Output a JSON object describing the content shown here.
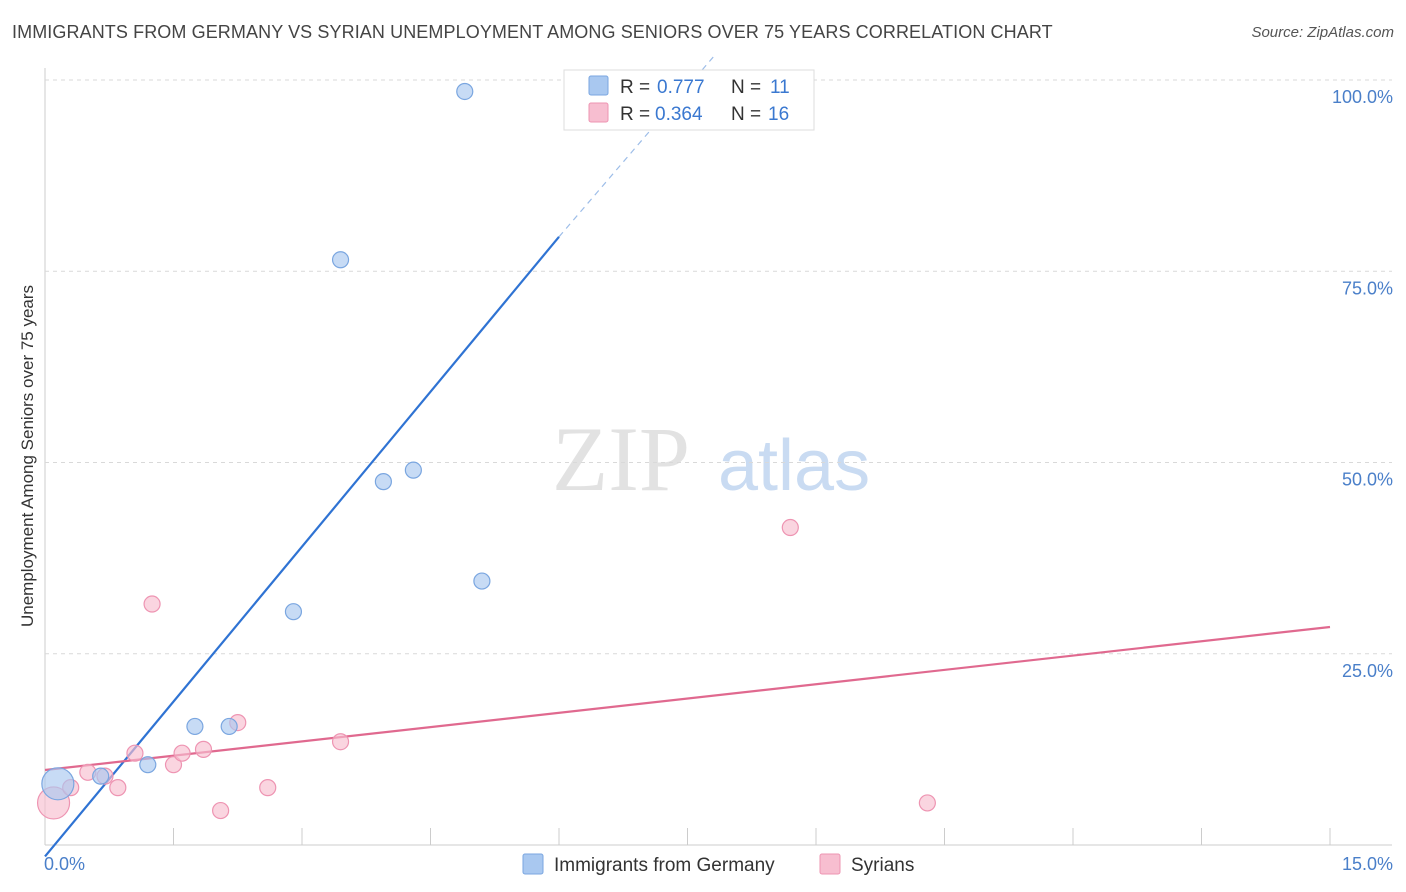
{
  "header": {
    "title": "IMMIGRANTS FROM GERMANY VS SYRIAN UNEMPLOYMENT AMONG SENIORS OVER 75 YEARS CORRELATION CHART",
    "source": "Source: ZipAtlas.com"
  },
  "watermark": {
    "zip": "ZIP",
    "atlas": "atlas"
  },
  "colors": {
    "germany_fill": "#a9c8f0",
    "germany_stroke": "#7aa6e0",
    "germany_line": "#2f73d3",
    "syrians_fill": "#f7bed0",
    "syrians_stroke": "#ee94b2",
    "syrians_line": "#e0698f",
    "tick_text": "#4a7fc9",
    "grid": "#d9d9d9"
  },
  "chart_data": {
    "type": "scatter",
    "title": "IMMIGRANTS FROM GERMANY VS SYRIAN UNEMPLOYMENT AMONG SENIORS OVER 75 YEARS CORRELATION CHART",
    "xlabel": "",
    "ylabel": "Unemployment Among Seniors over 75 years",
    "xlim": [
      0,
      15
    ],
    "ylim": [
      0,
      100
    ],
    "x_tick_labels": [
      "0.0%",
      "15.0%"
    ],
    "y_ticks": [
      25,
      50,
      75,
      100
    ],
    "y_tick_labels": [
      "25.0%",
      "50.0%",
      "75.0%",
      "100.0%"
    ],
    "legend_top": [
      {
        "label": "R = ",
        "r": "0.777",
        "n_label": "N = ",
        "n": "11"
      },
      {
        "label": "R = ",
        "r": "0.364",
        "n_label": "N = ",
        "n": "16"
      }
    ],
    "series": [
      {
        "name": "Immigrants from Germany",
        "points": [
          {
            "x": 0.15,
            "y": 8.0,
            "size": "large"
          },
          {
            "x": 0.65,
            "y": 9.0
          },
          {
            "x": 1.2,
            "y": 10.5
          },
          {
            "x": 1.75,
            "y": 15.5
          },
          {
            "x": 2.15,
            "y": 15.5
          },
          {
            "x": 2.9,
            "y": 30.5
          },
          {
            "x": 3.45,
            "y": 76.5
          },
          {
            "x": 3.95,
            "y": 47.5
          },
          {
            "x": 4.3,
            "y": 49.0
          },
          {
            "x": 4.9,
            "y": 98.5
          },
          {
            "x": 5.1,
            "y": 34.5
          }
        ],
        "trend": {
          "x0": 0.0,
          "y0": -1.5,
          "x1": 6.0,
          "y1": 79.5,
          "dash_x1": 7.8,
          "dash_y1": 103.0
        }
      },
      {
        "name": "Syrians",
        "points": [
          {
            "x": 0.1,
            "y": 5.5,
            "size": "large"
          },
          {
            "x": 0.3,
            "y": 7.5
          },
          {
            "x": 0.5,
            "y": 9.5
          },
          {
            "x": 0.7,
            "y": 9.0
          },
          {
            "x": 0.85,
            "y": 7.5
          },
          {
            "x": 1.05,
            "y": 12.0
          },
          {
            "x": 1.25,
            "y": 31.5
          },
          {
            "x": 1.5,
            "y": 10.5
          },
          {
            "x": 1.6,
            "y": 12.0
          },
          {
            "x": 1.85,
            "y": 12.5
          },
          {
            "x": 2.05,
            "y": 4.5
          },
          {
            "x": 2.25,
            "y": 16.0
          },
          {
            "x": 2.6,
            "y": 7.5
          },
          {
            "x": 3.45,
            "y": 13.5
          },
          {
            "x": 8.7,
            "y": 41.5
          },
          {
            "x": 10.3,
            "y": 5.5
          }
        ],
        "trend": {
          "x0": 0.0,
          "y0": 9.8,
          "x1": 15.0,
          "y1": 28.5
        }
      }
    ]
  }
}
